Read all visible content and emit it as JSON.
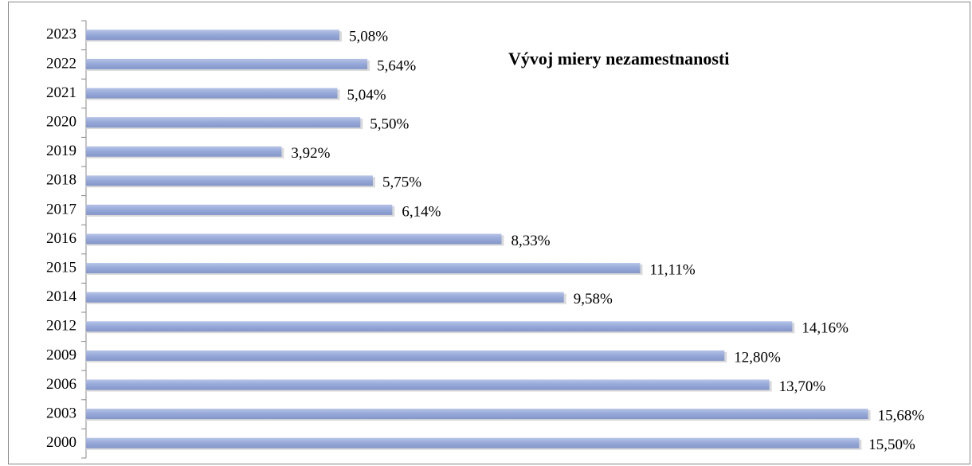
{
  "chart_data": {
    "type": "bar",
    "orientation": "horizontal",
    "title": "Vývoj miery nezamestnanosti",
    "categories": [
      "2023",
      "2022",
      "2021",
      "2020",
      "2019",
      "2018",
      "2017",
      "2016",
      "2015",
      "2014",
      "2012",
      "2009",
      "2006",
      "2003",
      "2000"
    ],
    "values": [
      5.08,
      5.64,
      5.04,
      5.5,
      3.92,
      5.75,
      6.14,
      8.33,
      11.11,
      9.58,
      14.16,
      12.8,
      13.7,
      15.68,
      15.5
    ],
    "value_labels": [
      "5,08%",
      "5,64%",
      "5,04%",
      "5,50%",
      "3,92%",
      "5,75%",
      "6,14%",
      "8,33%",
      "11,11%",
      "9,58%",
      "14,16%",
      "12,80%",
      "13,70%",
      "15,68%",
      "15,50%"
    ],
    "color": "#95a8d8"
  }
}
